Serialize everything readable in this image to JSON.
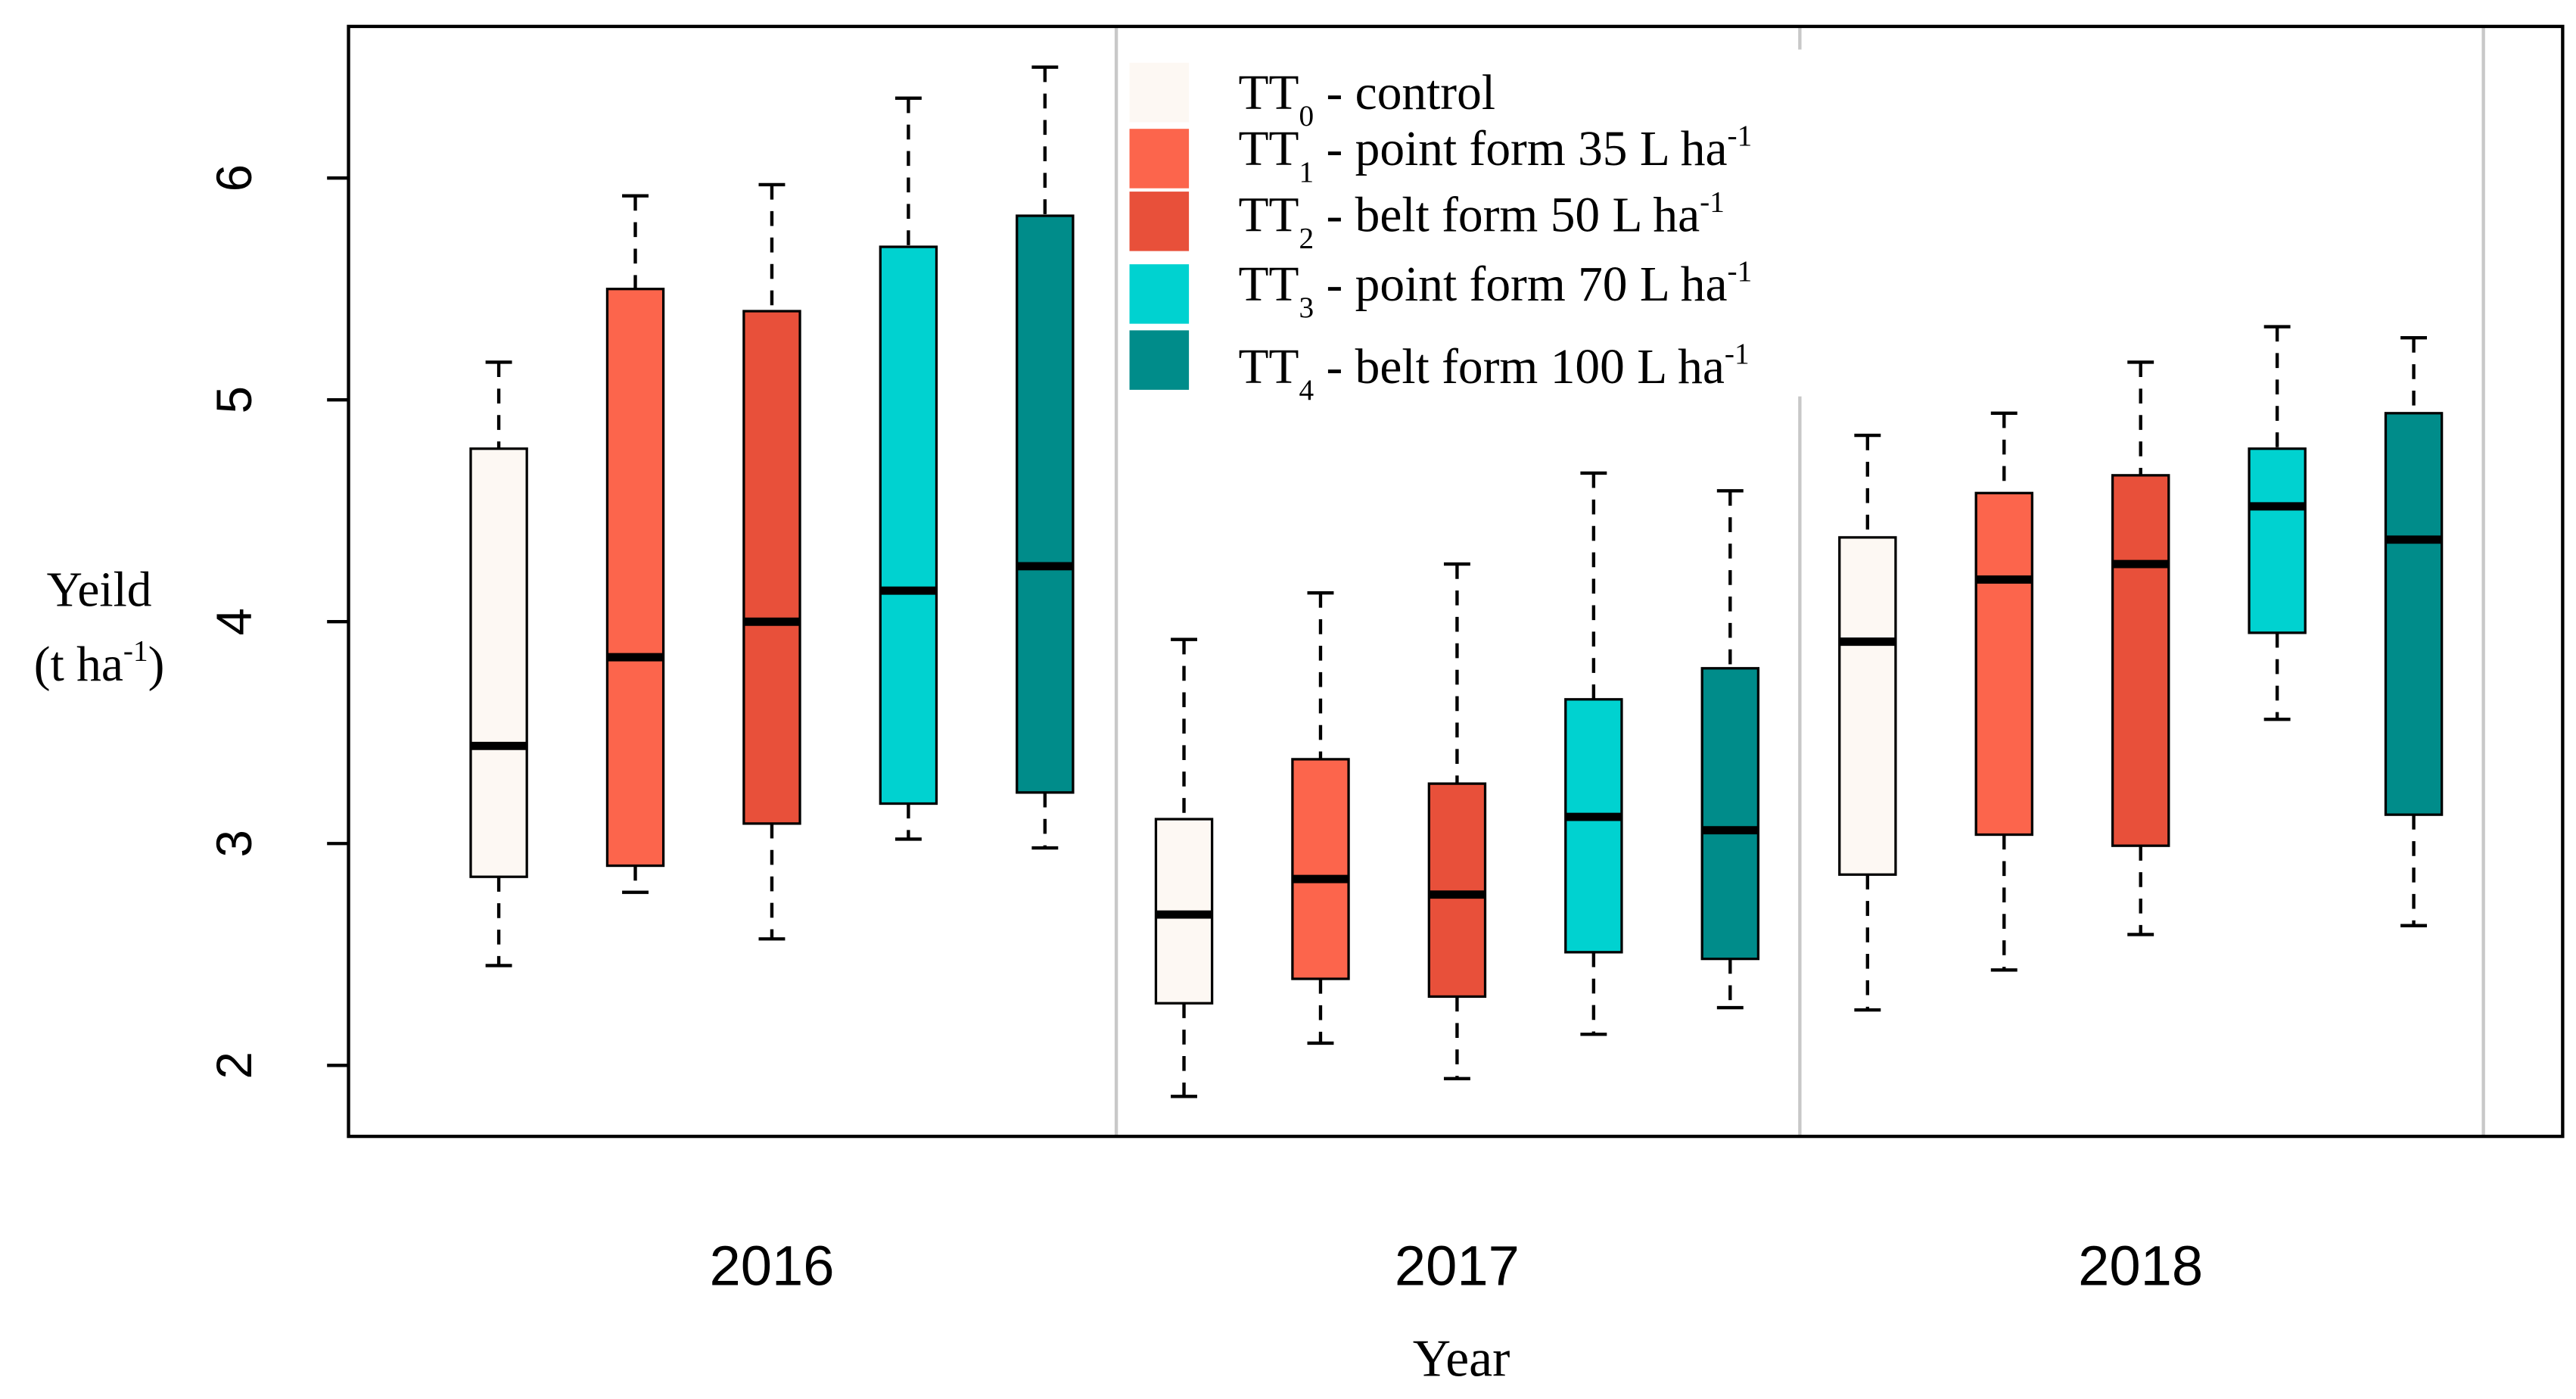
{
  "chart_data": {
    "type": "boxplot",
    "xlabel": "Year",
    "ylabel": "Yeild",
    "ylabel_unit": "(t ha",
    "ylabel_unit_sup": "-1",
    "ylabel_unit_close": ")",
    "ylim": [
      1.7,
      6.7
    ],
    "yticks": [
      "2",
      "3",
      "4",
      "5",
      "6"
    ],
    "ytick_values": [
      2,
      3,
      4,
      5,
      6
    ],
    "categories": [
      "2016",
      "2017",
      "2018"
    ],
    "legend_placement": "top-center",
    "series": [
      {
        "name": "TT",
        "sub": "0",
        "label": " - control",
        "sup": "",
        "color": "#FDF8F3"
      },
      {
        "name": "TT",
        "sub": "1",
        "label": " - point form 35 L ha",
        "sup": "-1",
        "color": "#FC654C"
      },
      {
        "name": "TT",
        "sub": "2",
        "label": " - belt form 50 L ha",
        "sup": "-1",
        "color": "#E8503A"
      },
      {
        "name": "TT",
        "sub": "3",
        "label": " - point form 70 L ha",
        "sup": "-1",
        "color": "#00D2D0"
      },
      {
        "name": "TT",
        "sub": "4",
        "label": " - belt form 100 L ha",
        "sup": "-1",
        "color": "#008C8A"
      }
    ],
    "boxes": [
      [
        {
          "min": 2.45,
          "q1": 2.85,
          "median": 3.44,
          "q3": 4.78,
          "max": 5.17
        },
        {
          "min": 2.78,
          "q1": 2.9,
          "median": 3.84,
          "q3": 5.5,
          "max": 5.92
        },
        {
          "min": 2.57,
          "q1": 3.09,
          "median": 4.0,
          "q3": 5.4,
          "max": 5.97
        },
        {
          "min": 3.02,
          "q1": 3.18,
          "median": 4.14,
          "q3": 5.69,
          "max": 6.36
        },
        {
          "min": 2.98,
          "q1": 3.23,
          "median": 4.25,
          "q3": 5.83,
          "max": 6.5
        }
      ],
      [
        {
          "min": 1.86,
          "q1": 2.28,
          "median": 2.68,
          "q3": 3.11,
          "max": 3.92
        },
        {
          "min": 2.1,
          "q1": 2.39,
          "median": 2.84,
          "q3": 3.38,
          "max": 4.13
        },
        {
          "min": 1.94,
          "q1": 2.31,
          "median": 2.77,
          "q3": 3.27,
          "max": 4.26
        },
        {
          "min": 2.14,
          "q1": 2.51,
          "median": 3.12,
          "q3": 3.65,
          "max": 4.67
        },
        {
          "min": 2.26,
          "q1": 2.48,
          "median": 3.06,
          "q3": 3.79,
          "max": 4.59
        }
      ],
      [
        {
          "min": 2.25,
          "q1": 2.86,
          "median": 3.91,
          "q3": 4.38,
          "max": 4.84
        },
        {
          "min": 2.43,
          "q1": 3.04,
          "median": 4.19,
          "q3": 4.58,
          "max": 4.94
        },
        {
          "min": 2.59,
          "q1": 2.99,
          "median": 4.26,
          "q3": 4.66,
          "max": 5.17
        },
        {
          "min": 3.56,
          "q1": 3.95,
          "median": 4.52,
          "q3": 4.78,
          "max": 5.33
        },
        {
          "min": 2.63,
          "q1": 3.13,
          "median": 4.37,
          "q3": 4.94,
          "max": 5.28
        }
      ]
    ]
  }
}
